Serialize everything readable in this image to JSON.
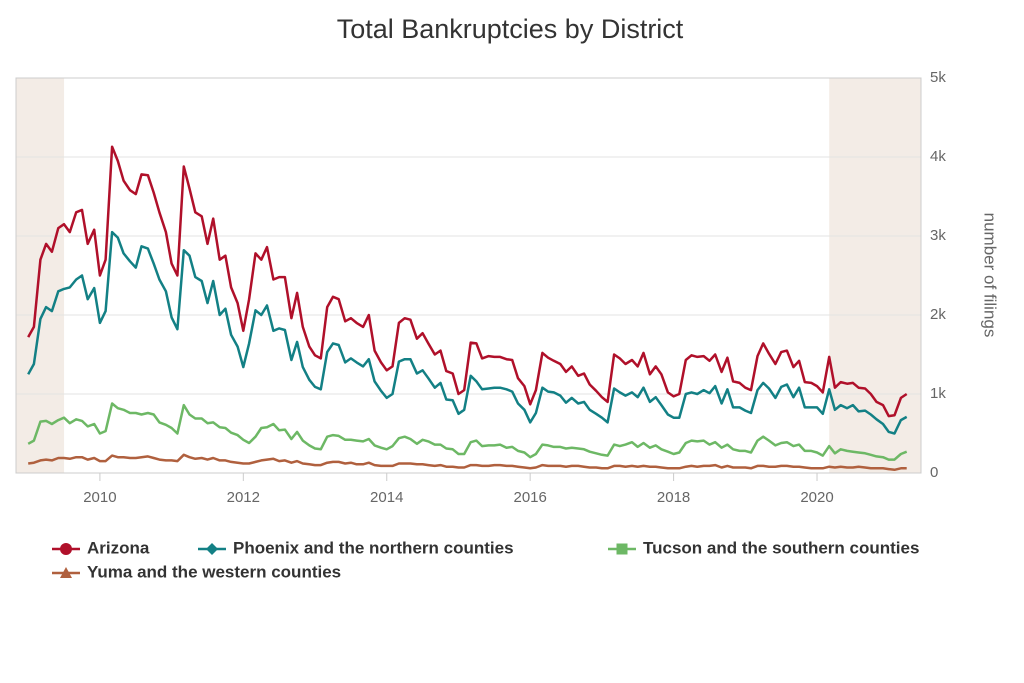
{
  "chart_data": {
    "type": "line",
    "title": "Total Bankruptcies by District",
    "y_axis_label": "number of filings",
    "x": [
      2009,
      2009.08,
      2009.17,
      2009.25,
      2009.33,
      2009.42,
      2009.5,
      2009.58,
      2009.67,
      2009.75,
      2009.83,
      2009.92,
      2010,
      2010.08,
      2010.17,
      2010.25,
      2010.33,
      2010.42,
      2010.5,
      2010.58,
      2010.67,
      2010.75,
      2010.83,
      2010.92,
      2011,
      2011.08,
      2011.17,
      2011.25,
      2011.33,
      2011.42,
      2011.5,
      2011.58,
      2011.67,
      2011.75,
      2011.83,
      2011.92,
      2012,
      2012.08,
      2012.17,
      2012.25,
      2012.33,
      2012.42,
      2012.5,
      2012.58,
      2012.67,
      2012.75,
      2012.83,
      2012.92,
      2013,
      2013.08,
      2013.17,
      2013.25,
      2013.33,
      2013.42,
      2013.5,
      2013.58,
      2013.67,
      2013.75,
      2013.83,
      2013.92,
      2014,
      2014.08,
      2014.17,
      2014.25,
      2014.33,
      2014.42,
      2014.5,
      2014.58,
      2014.67,
      2014.75,
      2014.83,
      2014.92,
      2015,
      2015.08,
      2015.17,
      2015.25,
      2015.33,
      2015.42,
      2015.5,
      2015.58,
      2015.67,
      2015.75,
      2015.83,
      2015.92,
      2016,
      2016.08,
      2016.17,
      2016.25,
      2016.33,
      2016.42,
      2016.5,
      2016.58,
      2016.67,
      2016.75,
      2016.83,
      2016.92,
      2017,
      2017.08,
      2017.17,
      2017.25,
      2017.33,
      2017.42,
      2017.5,
      2017.58,
      2017.67,
      2017.75,
      2017.83,
      2017.92,
      2018,
      2018.08,
      2018.17,
      2018.25,
      2018.33,
      2018.42,
      2018.5,
      2018.58,
      2018.67,
      2018.75,
      2018.83,
      2018.92,
      2019,
      2019.08,
      2019.17,
      2019.25,
      2019.33,
      2019.42,
      2019.5,
      2019.58,
      2019.67,
      2019.75,
      2019.83,
      2019.92,
      2020,
      2020.08,
      2020.17,
      2020.25,
      2020.33,
      2020.42,
      2020.5,
      2020.58,
      2020.67,
      2020.75,
      2020.83,
      2020.92,
      2021,
      2021.08,
      2021.17,
      2021.25
    ],
    "series": [
      {
        "name": "Arizona",
        "color": "#b0102a",
        "marker": "circle",
        "values": [
          1720,
          1850,
          2700,
          2900,
          2800,
          3100,
          3150,
          3050,
          3300,
          3330,
          2900,
          3080,
          2500,
          2700,
          4130,
          3950,
          3700,
          3580,
          3530,
          3780,
          3770,
          3550,
          3300,
          3050,
          2650,
          2500,
          3880,
          3600,
          3300,
          3250,
          2900,
          3220,
          2700,
          2750,
          2350,
          2150,
          1800,
          2200,
          2780,
          2700,
          2860,
          2450,
          2480,
          2480,
          1960,
          2280,
          1850,
          1600,
          1490,
          1450,
          2100,
          2230,
          2200,
          1920,
          1960,
          1900,
          1850,
          2000,
          1550,
          1400,
          1300,
          1350,
          1900,
          1960,
          1940,
          1700,
          1770,
          1640,
          1500,
          1550,
          1290,
          1260,
          1000,
          1050,
          1650,
          1640,
          1450,
          1480,
          1470,
          1470,
          1440,
          1430,
          1200,
          1100,
          870,
          1050,
          1520,
          1460,
          1420,
          1380,
          1280,
          1350,
          1230,
          1260,
          1120,
          1040,
          960,
          900,
          1500,
          1450,
          1380,
          1430,
          1350,
          1520,
          1250,
          1350,
          1250,
          1020,
          970,
          1000,
          1430,
          1490,
          1470,
          1480,
          1420,
          1500,
          1280,
          1460,
          1160,
          1140,
          1080,
          1050,
          1480,
          1640,
          1510,
          1380,
          1530,
          1550,
          1340,
          1420,
          1150,
          1140,
          1100,
          1020,
          1470,
          1080,
          1150,
          1130,
          1140,
          1080,
          1070,
          1000,
          900,
          860,
          720,
          730,
          950,
          1000
        ]
      },
      {
        "name": "Phoenix and the northern counties",
        "color": "#138085",
        "marker": "diamond",
        "values": [
          1250,
          1380,
          1950,
          2100,
          2050,
          2300,
          2330,
          2350,
          2450,
          2500,
          2200,
          2340,
          1900,
          2050,
          3050,
          2980,
          2780,
          2680,
          2600,
          2870,
          2840,
          2650,
          2450,
          2300,
          1970,
          1820,
          2820,
          2750,
          2480,
          2430,
          2150,
          2430,
          2000,
          2080,
          1750,
          1600,
          1340,
          1640,
          2060,
          2000,
          2120,
          1800,
          1830,
          1810,
          1430,
          1660,
          1340,
          1180,
          1090,
          1060,
          1530,
          1640,
          1620,
          1400,
          1450,
          1400,
          1350,
          1440,
          1160,
          1040,
          950,
          1000,
          1410,
          1440,
          1440,
          1260,
          1300,
          1200,
          1080,
          1140,
          930,
          920,
          750,
          800,
          1230,
          1160,
          1060,
          1070,
          1080,
          1080,
          1060,
          1030,
          880,
          800,
          640,
          760,
          1080,
          1030,
          1020,
          980,
          890,
          950,
          880,
          900,
          800,
          750,
          700,
          640,
          1070,
          1020,
          980,
          1020,
          960,
          1080,
          900,
          960,
          860,
          740,
          700,
          700,
          1000,
          1020,
          1000,
          1050,
          1010,
          1100,
          880,
          1060,
          830,
          830,
          790,
          760,
          1050,
          1140,
          1070,
          950,
          1090,
          1120,
          960,
          1080,
          830,
          830,
          830,
          750,
          1060,
          800,
          860,
          820,
          860,
          780,
          790,
          740,
          680,
          620,
          520,
          500,
          670,
          710
        ]
      },
      {
        "name": "Tucson and the southern counties",
        "color": "#6db865",
        "marker": "square",
        "values": [
          370,
          410,
          650,
          660,
          620,
          670,
          700,
          630,
          680,
          660,
          590,
          620,
          500,
          530,
          880,
          820,
          800,
          760,
          760,
          740,
          760,
          740,
          640,
          610,
          570,
          500,
          860,
          740,
          690,
          690,
          630,
          640,
          580,
          570,
          510,
          480,
          420,
          380,
          460,
          570,
          580,
          620,
          540,
          550,
          430,
          520,
          410,
          350,
          310,
          300,
          460,
          480,
          470,
          420,
          420,
          410,
          400,
          430,
          350,
          320,
          300,
          340,
          440,
          460,
          430,
          370,
          420,
          400,
          360,
          360,
          310,
          300,
          240,
          240,
          390,
          410,
          340,
          350,
          350,
          360,
          320,
          330,
          280,
          260,
          200,
          240,
          360,
          350,
          330,
          330,
          310,
          320,
          310,
          300,
          270,
          250,
          230,
          220,
          360,
          340,
          360,
          390,
          330,
          380,
          320,
          350,
          300,
          270,
          240,
          260,
          380,
          410,
          400,
          410,
          360,
          390,
          320,
          360,
          300,
          280,
          280,
          260,
          410,
          460,
          410,
          350,
          380,
          390,
          340,
          360,
          280,
          280,
          260,
          220,
          340,
          250,
          300,
          280,
          270,
          260,
          250,
          230,
          210,
          200,
          170,
          170,
          240,
          270
        ]
      },
      {
        "name": "Yuma and the western counties",
        "color": "#b0603e",
        "marker": "triangle",
        "values": [
          120,
          130,
          160,
          170,
          160,
          190,
          190,
          180,
          200,
          200,
          170,
          190,
          150,
          150,
          220,
          200,
          200,
          190,
          190,
          200,
          210,
          190,
          170,
          160,
          160,
          150,
          230,
          200,
          180,
          190,
          170,
          190,
          160,
          160,
          140,
          130,
          120,
          120,
          140,
          160,
          170,
          180,
          150,
          160,
          130,
          150,
          120,
          110,
          100,
          100,
          130,
          140,
          140,
          120,
          130,
          110,
          110,
          130,
          100,
          90,
          90,
          90,
          120,
          120,
          120,
          110,
          110,
          100,
          90,
          100,
          80,
          80,
          70,
          70,
          100,
          100,
          90,
          90,
          100,
          100,
          90,
          90,
          80,
          70,
          60,
          70,
          100,
          90,
          90,
          90,
          80,
          90,
          90,
          80,
          70,
          70,
          60,
          60,
          90,
          90,
          80,
          90,
          80,
          90,
          80,
          80,
          70,
          60,
          60,
          60,
          80,
          90,
          80,
          90,
          90,
          100,
          70,
          90,
          70,
          70,
          70,
          60,
          90,
          90,
          80,
          80,
          90,
          90,
          80,
          80,
          70,
          60,
          60,
          60,
          80,
          70,
          80,
          70,
          70,
          80,
          70,
          60,
          60,
          60,
          50,
          40,
          60,
          60
        ]
      }
    ],
    "shaded_ranges": [
      [
        2007.92,
        2009.5
      ],
      [
        2020.17,
        2021.45
      ]
    ],
    "xlim": [
      2008.83,
      2021.45
    ],
    "xticks": [
      2010,
      2012,
      2014,
      2016,
      2018,
      2020
    ],
    "ylim": [
      0,
      5000
    ],
    "yticks": [
      0,
      {
        "value": 1000,
        "label": "1k"
      },
      {
        "value": 2000,
        "label": "2k"
      },
      {
        "value": 3000,
        "label": "3k"
      },
      {
        "value": 4000,
        "label": "4k"
      },
      {
        "value": 5000,
        "label": "5k"
      }
    ],
    "grid": true,
    "legend": "bottom"
  }
}
